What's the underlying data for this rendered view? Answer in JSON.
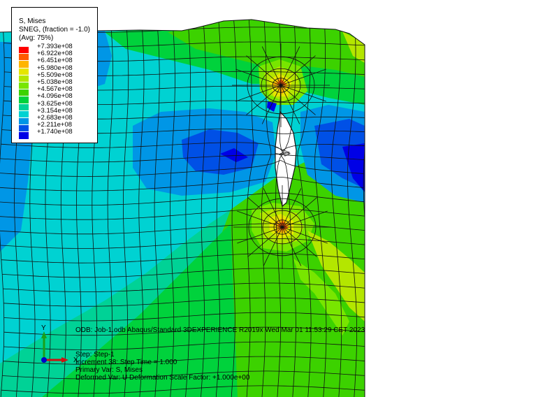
{
  "legend": {
    "title": "S, Mises",
    "subtitle": "SNEG, (fraction = -1.0)",
    "averaging": "(Avg: 75%)",
    "entries": [
      {
        "label": "+7.393e+08",
        "color": "#ff0000"
      },
      {
        "label": "+6.922e+08",
        "color": "#ff5a00"
      },
      {
        "label": "+6.451e+08",
        "color": "#ffb400"
      },
      {
        "label": "+5.980e+08",
        "color": "#e6e600"
      },
      {
        "label": "+5.509e+08",
        "color": "#b4e600"
      },
      {
        "label": "+5.038e+08",
        "color": "#78e600"
      },
      {
        "label": "+4.567e+08",
        "color": "#3cd200"
      },
      {
        "label": "+4.096e+08",
        "color": "#00d23c"
      },
      {
        "label": "+3.625e+08",
        "color": "#00d296"
      },
      {
        "label": "+3.154e+08",
        "color": "#00d2d2"
      },
      {
        "label": "+2.683e+08",
        "color": "#0096e6"
      },
      {
        "label": "+2.211e+08",
        "color": "#0050e6"
      },
      {
        "label": "+1.740e+08",
        "color": "#0000e6"
      }
    ]
  },
  "odb_info": "ODB: Job-1.odb    Abaqus/Standard 3DEXPERIENCE R2019x    Wed Mar 01 11:53:29 CET 2023",
  "step_info": {
    "step": "Step: Step-1",
    "increment": "Increment     38: Step Time =    1.000",
    "primary_var": "Primary Var: S, Mises",
    "deformed_var": "Deformed Var: U   Deformation Scale Factor: +1.000e+00"
  },
  "triad": {
    "y_label": "Y",
    "x_label": "X"
  },
  "colors": {
    "mesh_line": "#111111",
    "background": "#ffffff"
  }
}
